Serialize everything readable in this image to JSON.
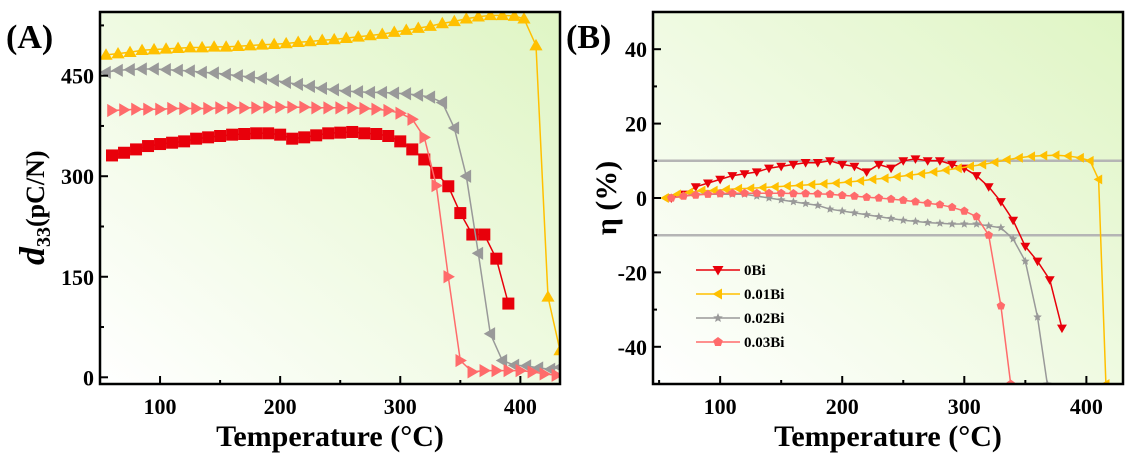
{
  "chart_data": [
    {
      "type": "line",
      "panel_label": "(A)",
      "title": "",
      "xlabel": "Temperature (°C)",
      "ylabel_main": "d",
      "ylabel_sub": "33",
      "ylabel_rest": "(pC/N)",
      "xlim": [
        50,
        433
      ],
      "ylim": [
        -10,
        545
      ],
      "xticks": [
        100,
        200,
        300,
        400
      ],
      "xtick_labels": [
        "100",
        "200",
        "300",
        "400"
      ],
      "yticks": [
        0,
        150,
        300,
        450
      ],
      "ytick_labels": [
        "0",
        "150",
        "300",
        "450"
      ],
      "grid": false,
      "legend": "none",
      "series": [
        {
          "name": "0Bi",
          "color": "#e8000b",
          "marker": "square",
          "x": [
            60,
            70,
            80,
            90,
            100,
            110,
            120,
            130,
            140,
            150,
            160,
            170,
            180,
            190,
            200,
            210,
            220,
            230,
            240,
            250,
            260,
            270,
            280,
            290,
            300,
            310,
            320,
            330,
            340,
            350,
            360,
            370,
            380,
            390
          ],
          "y": [
            331,
            335,
            340,
            345,
            348,
            350,
            352,
            356,
            358,
            360,
            362,
            363,
            364,
            364,
            362,
            356,
            358,
            361,
            364,
            365,
            366,
            364,
            363,
            360,
            352,
            340,
            325,
            305,
            285,
            245,
            213,
            213,
            177,
            110
          ]
        },
        {
          "name": "0.01Bi",
          "color": "#ffc000",
          "marker": "triangle-up",
          "x": [
            55,
            65,
            75,
            85,
            95,
            105,
            115,
            125,
            135,
            145,
            155,
            165,
            175,
            185,
            195,
            205,
            215,
            225,
            235,
            245,
            255,
            265,
            275,
            285,
            295,
            305,
            315,
            325,
            335,
            345,
            355,
            365,
            375,
            385,
            395,
            403,
            413,
            423,
            433
          ],
          "y": [
            481,
            483,
            485,
            488,
            489,
            490,
            491,
            492,
            492,
            493,
            493,
            494,
            495,
            496,
            497,
            498,
            500,
            501,
            503,
            504,
            506,
            508,
            510,
            512,
            515,
            518,
            521,
            524,
            528,
            531,
            535,
            538,
            540,
            540,
            539,
            535,
            495,
            120,
            40
          ]
        },
        {
          "name": "0.02Bi",
          "color": "#999999",
          "marker": "triangle-left",
          "x": [
            55,
            65,
            75,
            85,
            95,
            105,
            115,
            125,
            135,
            145,
            155,
            165,
            175,
            185,
            195,
            205,
            215,
            225,
            235,
            245,
            255,
            265,
            275,
            285,
            295,
            305,
            315,
            325,
            335,
            345,
            355,
            365,
            375,
            385,
            395,
            405,
            415,
            425,
            433
          ],
          "y": [
            455,
            458,
            459,
            460,
            460,
            459,
            458,
            457,
            455,
            454,
            452,
            450,
            448,
            446,
            443,
            440,
            437,
            434,
            431,
            429,
            427,
            426,
            425,
            425,
            424,
            423,
            421,
            418,
            410,
            372,
            300,
            185,
            65,
            25,
            18,
            17,
            14,
            12,
            15
          ]
        },
        {
          "name": "0.03Bi",
          "color": "#ff6b6b",
          "marker": "triangle-right",
          "x": [
            60,
            70,
            80,
            90,
            100,
            110,
            120,
            130,
            140,
            150,
            160,
            170,
            180,
            190,
            200,
            210,
            220,
            230,
            240,
            250,
            260,
            270,
            280,
            290,
            300,
            310,
            320,
            330,
            340,
            350,
            360,
            370,
            380,
            390,
            400,
            410,
            420,
            430
          ],
          "y": [
            398,
            399,
            400,
            400,
            400,
            401,
            401,
            401,
            401,
            402,
            402,
            402,
            402,
            403,
            403,
            403,
            403,
            402,
            402,
            402,
            402,
            401,
            400,
            398,
            394,
            385,
            358,
            286,
            150,
            25,
            8,
            10,
            10,
            10,
            10,
            8,
            5,
            3
          ]
        }
      ]
    },
    {
      "type": "line",
      "panel_label": "(B)",
      "title": "",
      "xlabel": "Temperature (°C)",
      "ylabel": "η (%)",
      "xlim": [
        45,
        430
      ],
      "ylim": [
        -50,
        50
      ],
      "xticks": [
        100,
        200,
        300,
        400
      ],
      "xtick_labels": [
        "100",
        "200",
        "300",
        "400"
      ],
      "yticks": [
        -40,
        -20,
        0,
        20,
        40
      ],
      "ytick_labels": [
        "-40",
        "-20",
        "0",
        "20",
        "40"
      ],
      "reference_lines": [
        10,
        -10
      ],
      "grid": false,
      "legend": "lower-left",
      "series": [
        {
          "name": "0Bi",
          "color": "#e8000b",
          "marker": "triangle-down",
          "x": [
            60,
            70,
            80,
            90,
            100,
            110,
            120,
            130,
            140,
            150,
            160,
            170,
            180,
            190,
            200,
            210,
            220,
            230,
            240,
            250,
            260,
            270,
            280,
            290,
            300,
            310,
            320,
            330,
            340,
            350,
            360,
            370,
            380
          ],
          "y": [
            0,
            1,
            3,
            4,
            5,
            6,
            6.5,
            7,
            8,
            8.5,
            9,
            9.5,
            9.5,
            10,
            9,
            8.5,
            7,
            9,
            8,
            10,
            10.5,
            10,
            10,
            9,
            8,
            6,
            3,
            -1,
            -6,
            -13,
            -17,
            -22,
            -35
          ]
        },
        {
          "name": "0.01Bi",
          "color": "#ffc000",
          "marker": "triangle-left",
          "x": [
            55,
            65,
            75,
            85,
            95,
            105,
            115,
            125,
            135,
            145,
            155,
            165,
            175,
            185,
            195,
            205,
            215,
            225,
            235,
            245,
            255,
            265,
            275,
            285,
            295,
            305,
            315,
            325,
            335,
            345,
            355,
            365,
            375,
            385,
            395,
            403,
            410,
            416
          ],
          "y": [
            0,
            1,
            1.5,
            2,
            2,
            2.3,
            2.5,
            2.6,
            2.8,
            3,
            3.2,
            3.4,
            3.6,
            3.8,
            4,
            4.3,
            4.6,
            5,
            5.3,
            5.7,
            6.1,
            6.5,
            7,
            7.5,
            8,
            8.5,
            9,
            9.6,
            10.3,
            10.8,
            11.2,
            11.4,
            11.5,
            11.3,
            10.8,
            10,
            5,
            -50
          ]
        },
        {
          "name": "0.02Bi",
          "color": "#999999",
          "marker": "star",
          "x": [
            60,
            70,
            80,
            90,
            100,
            110,
            120,
            130,
            140,
            150,
            160,
            170,
            180,
            190,
            200,
            210,
            220,
            230,
            240,
            250,
            260,
            270,
            280,
            290,
            300,
            310,
            320,
            330,
            340,
            350,
            360,
            368
          ],
          "y": [
            0,
            0.5,
            1,
            1,
            1,
            1,
            1,
            0.5,
            0,
            -0.5,
            -1,
            -1.5,
            -2,
            -3,
            -3.5,
            -4,
            -4.5,
            -5,
            -5.5,
            -6,
            -6.3,
            -6.6,
            -6.8,
            -7,
            -7,
            -7,
            -7.5,
            -8,
            -11,
            -17,
            -32,
            -50
          ]
        },
        {
          "name": "0.03Bi",
          "color": "#ff6b6b",
          "marker": "pentagon",
          "x": [
            60,
            70,
            80,
            90,
            100,
            110,
            120,
            130,
            140,
            150,
            160,
            170,
            180,
            190,
            200,
            210,
            220,
            230,
            240,
            250,
            260,
            270,
            280,
            290,
            300,
            310,
            320,
            330,
            338
          ],
          "y": [
            0,
            0.5,
            0.8,
            1,
            1.2,
            1.3,
            1.3,
            1.3,
            1.3,
            1.3,
            1.2,
            1.2,
            1.1,
            1,
            0.7,
            0.5,
            0.2,
            0,
            -0.3,
            -0.6,
            -1,
            -1.4,
            -1.8,
            -2.5,
            -3.5,
            -5,
            -10,
            -29,
            -50
          ]
        }
      ]
    }
  ]
}
